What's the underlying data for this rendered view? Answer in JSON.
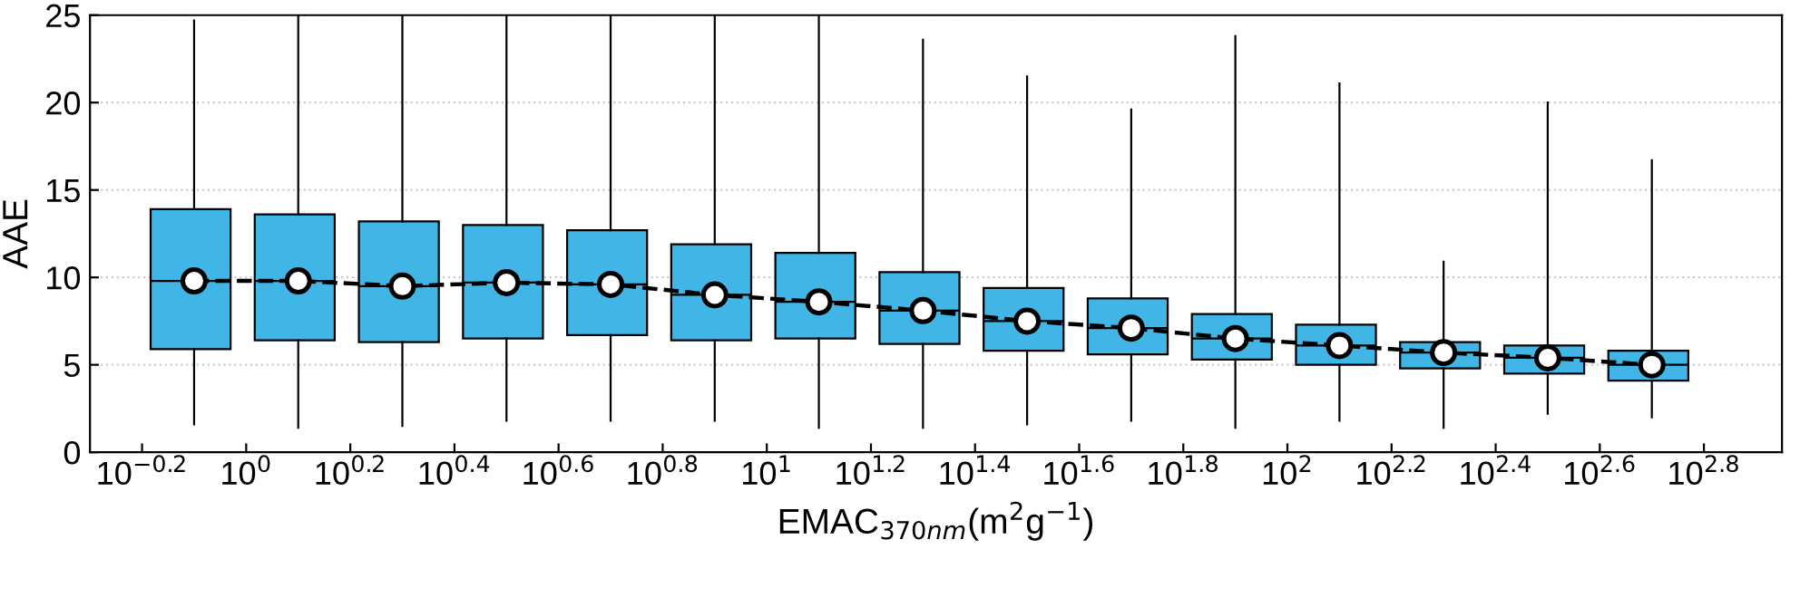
{
  "chart_data": {
    "type": "box",
    "xlabel": "EMAC$_{370nm}$(m$^{2}$g$^{−1}$)",
    "ylabel": "AAE",
    "log": "x",
    "grid": "y",
    "x": [
      0.7943,
      1.2589,
      1.9953,
      3.1623,
      5.0119,
      7.9433,
      12.589,
      19.953,
      31.623,
      50.119,
      79.433,
      125.89,
      199.53,
      316.23,
      501.19
    ],
    "color": "#41b6e6",
    "boxes": [
      {
        "low": 1.6,
        "q1": 5.9,
        "median": 9.8,
        "q3": 13.9,
        "high": 24.7
      },
      {
        "low": 1.4,
        "q1": 6.4,
        "median": 9.8,
        "q3": 13.6,
        "high": 25
      },
      {
        "low": 1.5,
        "q1": 6.3,
        "median": 9.5,
        "q3": 13.2,
        "high": 25
      },
      {
        "low": 1.8,
        "q1": 6.5,
        "median": 9.7,
        "q3": 13.0,
        "high": 25
      },
      {
        "low": 1.8,
        "q1": 6.7,
        "median": 9.6,
        "q3": 12.7,
        "high": 25
      },
      {
        "low": 1.8,
        "q1": 6.4,
        "median": 9.0,
        "q3": 11.9,
        "high": 25
      },
      {
        "low": 1.4,
        "q1": 6.5,
        "median": 8.6,
        "q3": 11.4,
        "high": 25
      },
      {
        "low": 1.4,
        "q1": 6.2,
        "median": 8.1,
        "q3": 10.3,
        "high": 23.6
      },
      {
        "low": 1.6,
        "q1": 5.8,
        "median": 7.5,
        "q3": 9.4,
        "high": 21.5
      },
      {
        "low": 1.8,
        "q1": 5.6,
        "median": 7.1,
        "q3": 8.8,
        "high": 19.6
      },
      {
        "low": 1.4,
        "q1": 5.3,
        "median": 6.5,
        "q3": 7.9,
        "high": 23.8
      },
      {
        "low": 1.8,
        "q1": 5.0,
        "median": 6.1,
        "q3": 7.3,
        "high": 21.1
      },
      {
        "low": 1.4,
        "q1": 4.8,
        "median": 5.7,
        "q3": 6.3,
        "high": 10.9
      },
      {
        "low": 2.2,
        "q1": 4.5,
        "median": 5.4,
        "q3": 6.1,
        "high": 20
      },
      {
        "low": 2.0,
        "q1": 4.1,
        "median": 5.0,
        "q3": 5.8,
        "high": 16.7
      }
    ],
    "series": [
      {
        "type": "line",
        "color": "#000000",
        "line_style": "dashed",
        "marker": "circle",
        "x": [
          0.7943,
          1.2589,
          1.9953,
          3.1623,
          5.0119,
          7.9433,
          12.589,
          19.953,
          31.623,
          50.119,
          79.433,
          125.89,
          199.53,
          316.23,
          501.19
        ],
        "values": [
          9.8,
          9.8,
          9.5,
          9.7,
          9.6,
          9.0,
          8.6,
          8.1,
          7.5,
          7.1,
          6.5,
          6.1,
          5.7,
          5.4,
          5.0
        ]
      }
    ],
    "xlim": [
      0.5012,
      891.25
    ],
    "xticks": [
      {
        "value": 0.631,
        "label": "10$^{−0.2}$"
      },
      {
        "value": 1,
        "label": "10$^{0}$"
      },
      {
        "value": 1.585,
        "label": "10$^{0.2}$"
      },
      {
        "value": 2.512,
        "label": "10$^{0.4}$"
      },
      {
        "value": 3.981,
        "label": "10$^{0.6}$"
      },
      {
        "value": 6.31,
        "label": "10$^{0.8}$"
      },
      {
        "value": 10,
        "label": "10$^{1}$"
      },
      {
        "value": 15.85,
        "label": "10$^{1.2}$"
      },
      {
        "value": 25.12,
        "label": "10$^{1.4}$"
      },
      {
        "value": 39.81,
        "label": "10$^{1.6}$"
      },
      {
        "value": 63.1,
        "label": "10$^{1.8}$"
      },
      {
        "value": 100,
        "label": "10$^{2}$"
      },
      {
        "value": 158.5,
        "label": "10$^{2.2}$"
      },
      {
        "value": 251.2,
        "label": "10$^{2.4}$"
      },
      {
        "value": 398.1,
        "label": "10$^{2.6}$"
      },
      {
        "value": 631,
        "label": "10$^{2.8}$"
      }
    ],
    "ylim": [
      0,
      25
    ],
    "yticks": [
      0,
      5,
      10,
      15,
      20,
      25
    ]
  }
}
